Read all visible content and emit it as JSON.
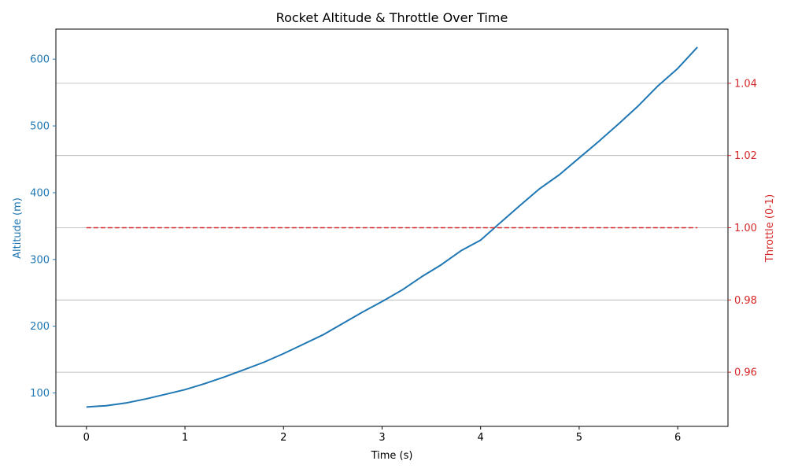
{
  "chart_data": {
    "type": "line",
    "title": "Rocket Altitude & Throttle Over Time",
    "xlabel": "Time (s)",
    "ylabel_left": "Altitude (m)",
    "ylabel_right": "Throttle (0-1)",
    "xlim": [
      -0.31,
      6.51
    ],
    "ylim_left": [
      50,
      645
    ],
    "ylim_right": [
      0.945,
      1.055
    ],
    "xticks": [
      0,
      1,
      2,
      3,
      4,
      5,
      6
    ],
    "yticks_left": [
      100,
      200,
      300,
      400,
      500,
      600
    ],
    "yticks_right": [
      0.96,
      0.98,
      1.0,
      1.02,
      1.04
    ],
    "ytick_labels_right": [
      "0.96",
      "0.98",
      "1.00",
      "1.02",
      "1.04"
    ],
    "grid": "horizontal lines at right-axis ticks",
    "colors": {
      "altitude": "#1f77b4",
      "throttle": "#d62728"
    },
    "series": [
      {
        "axis": "left",
        "style": "solid",
        "x": [
          0,
          0.2,
          0.4,
          0.6,
          0.8,
          1.0,
          1.2,
          1.4,
          1.6,
          1.8,
          2.0,
          2.2,
          2.4,
          2.6,
          2.8,
          3.0,
          3.2,
          3.4,
          3.6,
          3.8,
          4.0,
          4.2,
          4.4,
          4.6,
          4.8,
          5.0,
          5.2,
          5.4,
          5.6,
          5.8,
          6.0,
          6.2
        ],
        "values": [
          79,
          81,
          85,
          91,
          98,
          105,
          114,
          124,
          135,
          146,
          159,
          173,
          187,
          204,
          221,
          237,
          254,
          274,
          292,
          313,
          329,
          355,
          381,
          406,
          427,
          452,
          477,
          503,
          530,
          560,
          586,
          618
        ]
      },
      {
        "axis": "right",
        "style": "dashed",
        "x": [
          0,
          6.2
        ],
        "values": [
          1.0,
          1.0
        ]
      }
    ]
  }
}
